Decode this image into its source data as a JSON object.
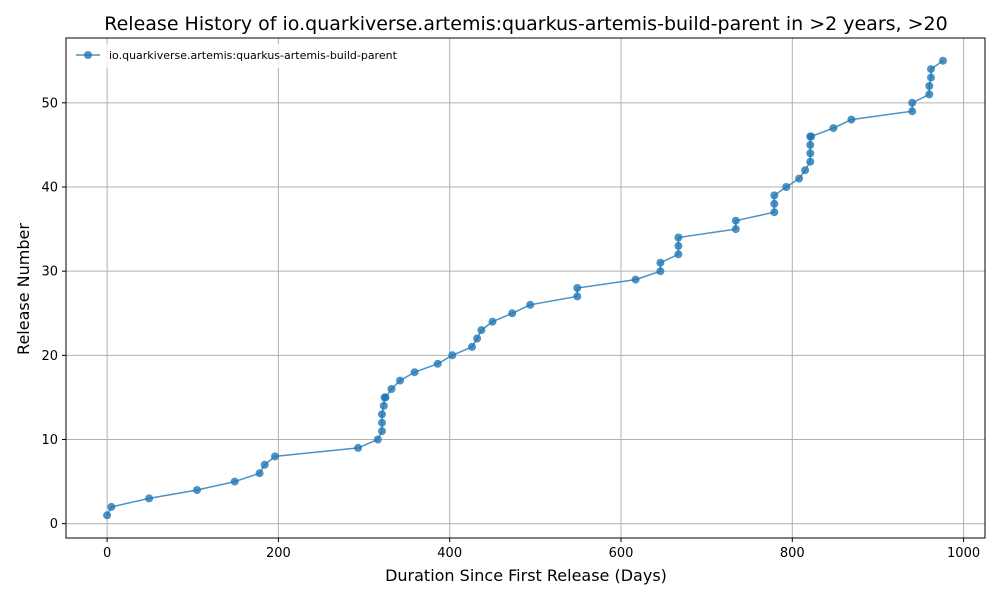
{
  "chart_data": {
    "type": "line",
    "title": "Release History of io.quarkiverse.artemis:quarkus-artemis-build-parent in >2 years, >20",
    "xlabel": "Duration Since First Release (Days)",
    "ylabel": "Release Number",
    "xlim": [
      -48,
      1025
    ],
    "ylim": [
      -1.7,
      57.7
    ],
    "xticks": [
      0,
      200,
      400,
      600,
      800,
      1000
    ],
    "yticks": [
      0,
      10,
      20,
      30,
      40,
      50
    ],
    "grid": true,
    "legend_position": "top-left",
    "series": [
      {
        "name": "io.quarkiverse.artemis:quarkus-artemis-build-parent",
        "color": "#1f77b4",
        "marker": "circle",
        "x": [
          0,
          5,
          49,
          105,
          149,
          178,
          184,
          196,
          293,
          316,
          321,
          321,
          321,
          323,
          324,
          325,
          332,
          342,
          359,
          386,
          403,
          426,
          432,
          437,
          450,
          473,
          494,
          549,
          549,
          617,
          646,
          646,
          667,
          667,
          667,
          734,
          734,
          779,
          779,
          779,
          793,
          808,
          815,
          821,
          821,
          821,
          821,
          822,
          848,
          869,
          940,
          940,
          960,
          960,
          962,
          962,
          976
        ],
        "y": [
          1,
          2,
          3,
          4,
          5,
          6,
          7,
          8,
          9,
          10,
          11,
          12,
          13,
          14,
          15,
          15,
          16,
          17,
          18,
          19,
          20,
          21,
          22,
          23,
          24,
          25,
          26,
          27,
          28,
          29,
          30,
          31,
          32,
          33,
          34,
          35,
          36,
          37,
          38,
          39,
          40,
          41,
          42,
          43,
          44,
          45,
          46,
          46,
          47,
          48,
          49,
          50,
          51,
          52,
          53,
          54,
          55
        ]
      }
    ]
  }
}
